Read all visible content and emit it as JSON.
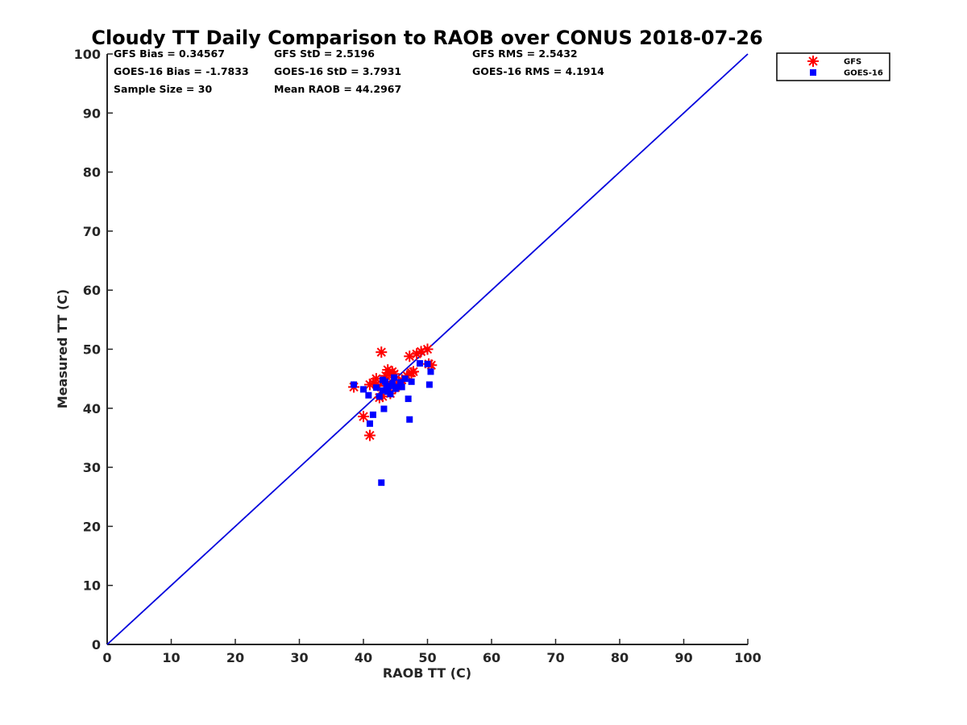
{
  "chart_data": {
    "type": "scatter",
    "title": "Cloudy TT Daily Comparison to RAOB over CONUS 2018-07-26",
    "xlabel": "RAOB TT (C)",
    "ylabel": "Measured TT (C)",
    "xlim": [
      0,
      100
    ],
    "ylim": [
      0,
      100
    ],
    "xticks": [
      0,
      10,
      20,
      30,
      40,
      50,
      60,
      70,
      80,
      90,
      100
    ],
    "yticks": [
      0,
      10,
      20,
      30,
      40,
      50,
      60,
      70,
      80,
      90,
      100
    ],
    "grid": false,
    "legend_position": "top-right (outside)",
    "reference_line": {
      "x": [
        0,
        100
      ],
      "y": [
        0,
        100
      ],
      "color": "#0000dd"
    },
    "stats": [
      [
        "GFS Bias = 0.34567",
        "GFS StD = 2.5196",
        "GFS RMS = 2.5432"
      ],
      [
        "GOES-16 Bias = -1.7833",
        "GOES-16 StD = 3.7931",
        "GOES-16 RMS = 4.1914"
      ],
      [
        "Sample Size = 30",
        "Mean RAOB = 44.2967",
        ""
      ]
    ],
    "series": [
      {
        "name": "GFS",
        "marker": "asterisk",
        "color": "#ff0000",
        "points": [
          [
            38.5,
            43.6
          ],
          [
            40.0,
            38.6
          ],
          [
            41.0,
            35.4
          ],
          [
            41.0,
            44.0
          ],
          [
            41.5,
            44.3
          ],
          [
            42.0,
            45.0
          ],
          [
            42.3,
            43.8
          ],
          [
            42.5,
            41.8
          ],
          [
            42.8,
            49.5
          ],
          [
            43.0,
            42.0
          ],
          [
            43.2,
            44.5
          ],
          [
            43.5,
            45.5
          ],
          [
            43.8,
            46.5
          ],
          [
            44.0,
            46.0
          ],
          [
            44.2,
            42.5
          ],
          [
            44.5,
            46.2
          ],
          [
            44.8,
            45.8
          ],
          [
            45.0,
            43.5
          ],
          [
            45.5,
            44.2
          ],
          [
            46.0,
            44.8
          ],
          [
            46.8,
            45.5
          ],
          [
            47.2,
            48.8
          ],
          [
            47.5,
            46.0
          ],
          [
            47.8,
            46.2
          ],
          [
            48.3,
            49.2
          ],
          [
            49.0,
            49.6
          ],
          [
            50.0,
            50.0
          ],
          [
            50.2,
            47.5
          ],
          [
            50.6,
            47.3
          ],
          [
            44.3,
            44.0
          ]
        ]
      },
      {
        "name": "GOES-16",
        "marker": "square",
        "color": "#0000ff",
        "points": [
          [
            38.5,
            44.0
          ],
          [
            40.0,
            43.2
          ],
          [
            40.8,
            42.2
          ],
          [
            41.0,
            37.4
          ],
          [
            41.5,
            38.9
          ],
          [
            42.0,
            43.5
          ],
          [
            42.5,
            42.0
          ],
          [
            42.8,
            27.4
          ],
          [
            43.0,
            43.0
          ],
          [
            43.2,
            39.9
          ],
          [
            43.4,
            44.5
          ],
          [
            43.6,
            43.6
          ],
          [
            43.8,
            42.8
          ],
          [
            44.0,
            43.8
          ],
          [
            44.2,
            42.4
          ],
          [
            44.5,
            44.2
          ],
          [
            45.0,
            43.3
          ],
          [
            45.4,
            43.6
          ],
          [
            45.8,
            44.4
          ],
          [
            46.0,
            43.6
          ],
          [
            46.5,
            45.0
          ],
          [
            47.0,
            41.6
          ],
          [
            47.2,
            38.1
          ],
          [
            47.5,
            44.5
          ],
          [
            48.8,
            47.6
          ],
          [
            50.0,
            47.5
          ],
          [
            50.3,
            44.0
          ],
          [
            50.5,
            46.2
          ],
          [
            43.0,
            44.8
          ],
          [
            44.8,
            45.2
          ]
        ]
      }
    ]
  }
}
